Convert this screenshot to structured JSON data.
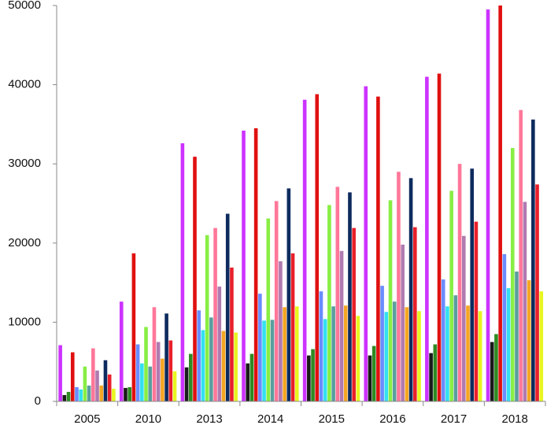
{
  "chart_data": {
    "type": "bar",
    "categories": [
      "2005",
      "2010",
      "2013",
      "2014",
      "2015",
      "2016",
      "2017",
      "2018"
    ],
    "series": [
      {
        "color": "#cc33ff",
        "values": [
          7100,
          12600,
          32600,
          34200,
          38100,
          39800,
          41000,
          49500
        ]
      },
      {
        "color": "#1a1a1a",
        "values": [
          800,
          1700,
          4300,
          4800,
          5800,
          5800,
          6100,
          7500
        ]
      },
      {
        "color": "#2e8b22",
        "values": [
          1200,
          1800,
          6000,
          6000,
          6600,
          7000,
          7200,
          8500
        ]
      },
      {
        "color": "#e01010",
        "values": [
          6200,
          18700,
          30900,
          34500,
          38800,
          38500,
          41400,
          50000
        ]
      },
      {
        "color": "#6a8cff",
        "values": [
          1800,
          7200,
          11500,
          13600,
          13900,
          14600,
          15400,
          18600
        ]
      },
      {
        "color": "#33e0f0",
        "values": [
          1500,
          4800,
          9000,
          10200,
          10400,
          11300,
          12000,
          14300
        ]
      },
      {
        "color": "#88ee44",
        "values": [
          4400,
          9400,
          21000,
          23100,
          24800,
          25400,
          26600,
          32000
        ]
      },
      {
        "color": "#5a9e9e",
        "values": [
          2000,
          4400,
          10600,
          10300,
          12000,
          12600,
          13400,
          16400
        ]
      },
      {
        "color": "#ff7799",
        "values": [
          6700,
          11900,
          21900,
          25300,
          27100,
          29000,
          30000,
          36800
        ]
      },
      {
        "color": "#b07ab0",
        "values": [
          3900,
          7500,
          14500,
          17700,
          19000,
          19800,
          20900,
          25200
        ]
      },
      {
        "color": "#f5a623",
        "values": [
          2000,
          5400,
          8900,
          11900,
          12100,
          11900,
          12100,
          15300
        ]
      },
      {
        "color": "#0d2b5e",
        "values": [
          5200,
          11100,
          23700,
          26900,
          26400,
          28200,
          29400,
          35600
        ]
      },
      {
        "color": "#e8202a",
        "values": [
          3400,
          7700,
          16900,
          18700,
          21900,
          22000,
          22700,
          27400
        ]
      },
      {
        "color": "#e8f520",
        "values": [
          1600,
          3800,
          8700,
          12000,
          10800,
          11400,
          11400,
          13900
        ]
      }
    ],
    "ylim": [
      0,
      50000
    ],
    "yticks": [
      0,
      10000,
      20000,
      30000,
      40000,
      50000
    ],
    "grid": false
  }
}
